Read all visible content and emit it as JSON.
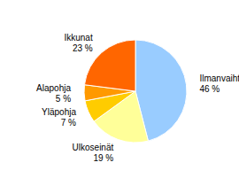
{
  "chart_data": {
    "type": "pie",
    "categories": [
      "Ilmanvaihto",
      "Ulkoseinät",
      "Yläpohja",
      "Alapohja",
      "Ikkunat"
    ],
    "values": [
      46,
      19,
      7,
      5,
      23
    ],
    "value_labels": [
      "46 %",
      "19 %",
      "7 %",
      "5 %",
      "23 %"
    ],
    "colors": [
      "#99ccff",
      "#ffff99",
      "#ffcc00",
      "#ff9900",
      "#ff6600"
    ],
    "data_labels": true
  }
}
